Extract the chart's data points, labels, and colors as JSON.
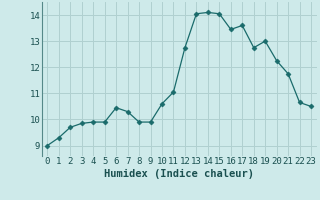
{
  "xlabel": "Humidex (Indice chaleur)",
  "x_values": [
    0,
    1,
    2,
    3,
    4,
    5,
    6,
    7,
    8,
    9,
    10,
    11,
    12,
    13,
    14,
    15,
    16,
    17,
    18,
    19,
    20,
    21,
    22,
    23
  ],
  "y_values": [
    9.0,
    9.3,
    9.7,
    9.85,
    9.9,
    9.9,
    10.45,
    10.3,
    9.9,
    9.9,
    10.6,
    11.05,
    12.75,
    14.05,
    14.1,
    14.05,
    13.45,
    13.6,
    12.75,
    13.0,
    12.25,
    11.75,
    10.65,
    10.5
  ],
  "line_color": "#1a6b6b",
  "marker": "D",
  "marker_size": 2.5,
  "bg_color": "#ceeaea",
  "grid_color": "#b0d0d0",
  "ylim": [
    8.6,
    14.5
  ],
  "xlim": [
    -0.5,
    23.5
  ],
  "yticks": [
    9,
    10,
    11,
    12,
    13,
    14
  ],
  "xticks": [
    0,
    1,
    2,
    3,
    4,
    5,
    6,
    7,
    8,
    9,
    10,
    11,
    12,
    13,
    14,
    15,
    16,
    17,
    18,
    19,
    20,
    21,
    22,
    23
  ],
  "tick_fontsize": 6.5,
  "label_fontsize": 7.5
}
